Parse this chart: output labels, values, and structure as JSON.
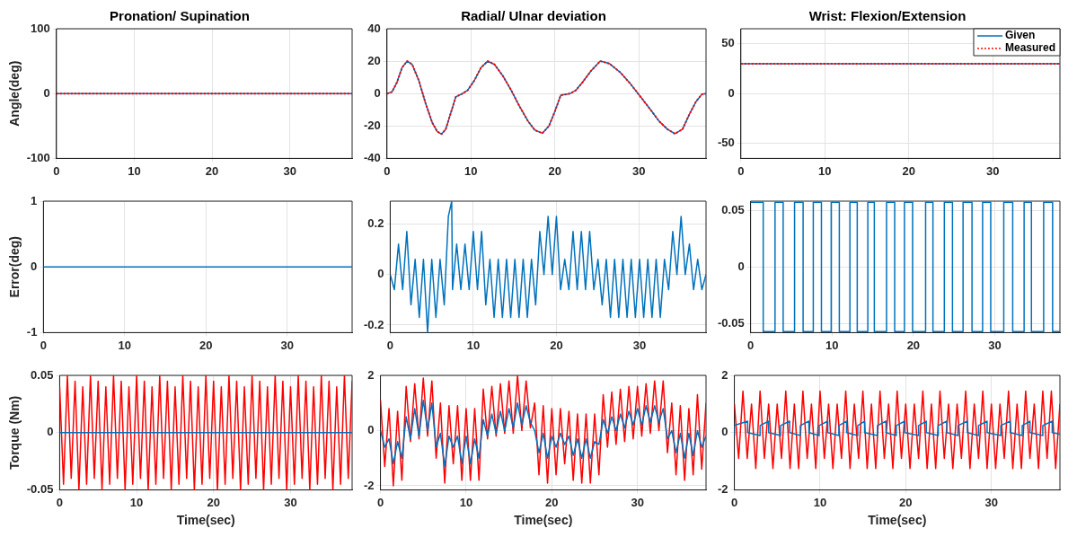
{
  "chart_data": [
    {
      "type": "line",
      "title": "Pronation/ Supination",
      "ylabel": "Angle(deg)",
      "xlim": [
        0,
        38
      ],
      "xticks": [
        0,
        10,
        20,
        30
      ],
      "ylim": [
        -100,
        100
      ],
      "yticks": [
        -100,
        0,
        100
      ],
      "grid": true,
      "series": [
        {
          "color": "#0072bd",
          "x": [
            0,
            38
          ],
          "values": [
            0,
            0
          ]
        },
        {
          "color": "#ff0000",
          "line_style": "dotted",
          "x": [
            0,
            38
          ],
          "values": [
            0,
            0
          ]
        }
      ]
    },
    {
      "type": "line",
      "title": "Radial/ Ulnar deviation",
      "xlim": [
        0,
        38
      ],
      "xticks": [
        0,
        10,
        20,
        30
      ],
      "ylim": [
        -40,
        40
      ],
      "yticks": [
        -40,
        -20,
        0,
        20,
        40
      ],
      "grid": true,
      "series": [
        {
          "color": "#0072bd",
          "x": [
            0,
            0.6,
            1.2,
            1.8,
            2.4,
            3.0,
            3.8,
            4.6,
            5.4,
            6.0,
            6.5,
            7.0,
            7.6,
            8.2,
            9.0,
            9.6,
            10.4,
            11.2,
            12.0,
            12.8,
            13.8,
            14.8,
            15.8,
            16.8,
            17.6,
            18.5,
            19.3,
            20.0,
            20.7,
            21.8,
            22.5,
            23.3,
            24.3,
            25.4,
            26.5,
            27.8,
            29.0,
            30.2,
            31.4,
            32.4,
            33.4,
            34.3,
            35.2,
            36.0,
            36.8,
            37.5,
            38
          ],
          "values": [
            0,
            1,
            7,
            16,
            20,
            18,
            8,
            -6,
            -18,
            -23.5,
            -25,
            -22,
            -12,
            -2,
            0,
            2,
            8,
            16,
            20,
            18,
            11,
            2,
            -8,
            -17,
            -22.5,
            -24.5,
            -20,
            -11,
            -1,
            0,
            2,
            7,
            14,
            20,
            18.5,
            13,
            6,
            -2,
            -10,
            -17,
            -22,
            -24.8,
            -22,
            -13,
            -5,
            -0.5,
            0
          ]
        },
        {
          "color": "#ff0000",
          "line_style": "dotted",
          "x": [
            0,
            0.6,
            1.2,
            1.8,
            2.4,
            3.0,
            3.8,
            4.6,
            5.4,
            6.0,
            6.5,
            7.0,
            7.6,
            8.2,
            9.0,
            9.6,
            10.4,
            11.2,
            12.0,
            12.8,
            13.8,
            14.8,
            15.8,
            16.8,
            17.6,
            18.5,
            19.3,
            20.0,
            20.7,
            21.8,
            22.5,
            23.3,
            24.3,
            25.4,
            26.5,
            27.8,
            29.0,
            30.2,
            31.4,
            32.4,
            33.4,
            34.3,
            35.2,
            36.0,
            36.8,
            37.5,
            38
          ],
          "values": [
            0,
            1,
            7,
            16,
            20,
            18,
            8,
            -6,
            -18,
            -23.5,
            -25,
            -22,
            -12,
            -2,
            0,
            2,
            8,
            16,
            20,
            18,
            11,
            2,
            -8,
            -17,
            -22.5,
            -24.5,
            -20,
            -11,
            -1,
            0,
            2,
            7,
            14,
            20,
            18.5,
            13,
            6,
            -2,
            -10,
            -17,
            -22,
            -24.8,
            -22,
            -13,
            -5,
            -0.5,
            0
          ]
        }
      ]
    },
    {
      "type": "line",
      "title": "Wrist: Flexion/Extension",
      "xlim": [
        0,
        38
      ],
      "xticks": [
        0,
        10,
        20,
        30
      ],
      "ylim": [
        -65,
        65
      ],
      "yticks": [
        -50,
        0,
        50
      ],
      "grid": true,
      "legend": "top right",
      "series": [
        {
          "name": "Given",
          "color": "#0072bd",
          "x": [
            0,
            38
          ],
          "values": [
            30,
            30
          ]
        },
        {
          "name": "Measured",
          "color": "#ff0000",
          "line_style": "dotted",
          "x": [
            0,
            38
          ],
          "values": [
            30,
            30
          ]
        }
      ]
    },
    {
      "type": "line",
      "ylabel": "Error(deg)",
      "xlim": [
        0,
        38
      ],
      "xticks": [
        0,
        10,
        20,
        30
      ],
      "ylim": [
        -1,
        1
      ],
      "yticks": [
        -1,
        0,
        1
      ],
      "grid": true,
      "series": [
        {
          "color": "#0072bd",
          "x": [
            0,
            38
          ],
          "values": [
            0,
            0
          ]
        }
      ]
    },
    {
      "type": "line",
      "xlim": [
        0,
        38
      ],
      "xticks": [
        0,
        10,
        20,
        30
      ],
      "ylim": [
        -0.23,
        0.29
      ],
      "yticks": [
        -0.2,
        0,
        0.2
      ],
      "grid": true,
      "series": [
        {
          "color": "#0072bd",
          "x": [
            0,
            0.5,
            1,
            1.5,
            2,
            2.5,
            3,
            3.5,
            4,
            4.5,
            5,
            5.5,
            6,
            6.5,
            7,
            7.4,
            7.5,
            8,
            8.5,
            9,
            9.5,
            10,
            10.5,
            11,
            11.5,
            12,
            12.5,
            13,
            13.5,
            14,
            14.5,
            15,
            15.5,
            16,
            16.5,
            17,
            17.5,
            18,
            18.5,
            19,
            19.5,
            20,
            20.5,
            21,
            21.5,
            22,
            22.5,
            23,
            23.5,
            24,
            24.5,
            25,
            25.5,
            26,
            26.5,
            27,
            27.5,
            28,
            28.5,
            29,
            29.5,
            30,
            30.5,
            31,
            31.5,
            32,
            32.5,
            33,
            33.5,
            34,
            34.5,
            35,
            35.5,
            36,
            36.5,
            37,
            37.5,
            38
          ],
          "values": [
            0,
            -0.06,
            0.12,
            -0.06,
            0.17,
            -0.12,
            0.06,
            -0.17,
            0.06,
            -0.23,
            0.06,
            -0.17,
            0.06,
            -0.12,
            0.23,
            0.29,
            -0.06,
            0.12,
            -0.06,
            0.12,
            -0.06,
            0.17,
            -0.06,
            0.17,
            -0.12,
            0.06,
            -0.17,
            0.06,
            -0.17,
            0.06,
            -0.17,
            0.06,
            -0.17,
            0.06,
            -0.17,
            0.06,
            -0.12,
            0.17,
            0,
            0.23,
            0,
            0.23,
            -0.06,
            0.06,
            -0.06,
            0.17,
            -0.06,
            0.17,
            -0.06,
            0.17,
            -0.06,
            0.06,
            -0.12,
            0.06,
            -0.17,
            0.06,
            -0.17,
            0.06,
            -0.17,
            0.06,
            -0.17,
            0.06,
            -0.17,
            0.06,
            -0.17,
            0.06,
            -0.17,
            0.06,
            -0.06,
            0.17,
            0,
            0.23,
            0,
            0.12,
            -0.06,
            0.06,
            -0.06,
            0
          ]
        }
      ]
    },
    {
      "type": "line",
      "xlim": [
        0,
        38
      ],
      "xticks": [
        0,
        10,
        20,
        30
      ],
      "ylim": [
        -0.058,
        0.058
      ],
      "yticks": [
        -0.05,
        0,
        0.05
      ],
      "grid": true,
      "series": [
        {
          "color": "#0072bd",
          "x": [
            0,
            1.55,
            1.55,
            3.0,
            3.0,
            4.0,
            4.0,
            5.4,
            5.4,
            6.45,
            6.45,
            7.7,
            7.7,
            8.7,
            8.7,
            9.9,
            9.9,
            10.9,
            10.9,
            12.2,
            12.2,
            13.1,
            13.1,
            14.4,
            14.4,
            15.2,
            15.2,
            16.7,
            16.7,
            17.7,
            17.7,
            18.9,
            18.9,
            19.9,
            19.9,
            21.5,
            21.5,
            22.4,
            22.4,
            23.8,
            23.8,
            24.8,
            24.8,
            26.1,
            26.1,
            27.2,
            27.2,
            28.5,
            28.5,
            29.5,
            29.5,
            31.1,
            31.1,
            32.2,
            32.2,
            33.6,
            33.6,
            34.5,
            34.5,
            36.0,
            36.0,
            37.1,
            37.1,
            38
          ],
          "values": [
            0.057,
            0.057,
            -0.057,
            -0.057,
            0.057,
            0.057,
            -0.057,
            -0.057,
            0.057,
            0.057,
            -0.057,
            -0.057,
            0.057,
            0.057,
            -0.057,
            -0.057,
            0.057,
            0.057,
            -0.057,
            -0.057,
            0.057,
            0.057,
            -0.057,
            -0.057,
            0.057,
            0.057,
            -0.057,
            -0.057,
            0.057,
            0.057,
            -0.057,
            -0.057,
            0.057,
            0.057,
            -0.057,
            -0.057,
            0.057,
            0.057,
            -0.057,
            -0.057,
            0.057,
            0.057,
            -0.057,
            -0.057,
            0.057,
            0.057,
            -0.057,
            -0.057,
            0.057,
            0.057,
            -0.057,
            -0.057,
            0.057,
            0.057,
            -0.057,
            -0.057,
            0.057,
            0.057,
            -0.057,
            -0.057,
            0.057,
            0.057,
            -0.057,
            -0.057
          ]
        }
      ]
    },
    {
      "type": "line",
      "xlabel": "Time(sec)",
      "ylabel": "Torque (Nm)",
      "xlim": [
        0,
        38
      ],
      "xticks": [
        0,
        10,
        20,
        30
      ],
      "ylim": [
        -0.05,
        0.05
      ],
      "yticks": [
        -0.05,
        0,
        0.05
      ],
      "grid": true,
      "x": [
        0,
        0.5,
        1,
        1.5,
        2,
        2.5,
        3,
        3.5,
        4,
        4.5,
        5,
        5.5,
        6,
        6.5,
        7,
        7.5,
        8,
        8.5,
        9,
        9.5,
        10,
        10.5,
        11,
        11.5,
        12,
        12.5,
        13,
        13.5,
        14,
        14.5,
        15,
        15.5,
        16,
        16.5,
        17,
        17.5,
        18,
        18.5,
        19,
        19.5,
        20,
        20.5,
        21,
        21.5,
        22,
        22.5,
        23,
        23.5,
        24,
        24.5,
        25,
        25.5,
        26,
        26.5,
        27,
        27.5,
        28,
        28.5,
        29,
        29.5,
        30,
        30.5,
        31,
        31.5,
        32,
        32.5,
        33,
        33.5,
        34,
        34.5,
        35,
        35.5,
        36,
        36.5,
        37,
        37.5,
        38
      ],
      "series": [
        {
          "color": "#ff0000",
          "values": [
            0.04,
            -0.045,
            0.05,
            -0.04,
            0.045,
            -0.05,
            0.04,
            -0.045,
            0.05,
            -0.04,
            0.045,
            -0.05,
            0.04,
            -0.045,
            0.05,
            -0.04,
            0.045,
            -0.05,
            0.04,
            -0.045,
            0.05,
            -0.04,
            0.045,
            -0.05,
            0.04,
            -0.045,
            0.05,
            -0.04,
            0.045,
            -0.05,
            0.04,
            -0.045,
            0.05,
            -0.04,
            0.045,
            -0.05,
            0.04,
            -0.045,
            0.05,
            -0.04,
            0.045,
            -0.05,
            0.04,
            -0.045,
            0.05,
            -0.04,
            0.045,
            -0.05,
            0.04,
            -0.045,
            0.05,
            -0.04,
            0.045,
            -0.05,
            0.04,
            -0.045,
            0.05,
            -0.04,
            0.045,
            -0.05,
            0.04,
            -0.045,
            0.05,
            -0.04,
            0.045,
            -0.05,
            0.04,
            -0.045,
            0.05,
            -0.04,
            0.045,
            -0.05,
            0.04,
            -0.045,
            0.05,
            -0.04,
            0.045
          ]
        },
        {
          "color": "#0072bd",
          "x": [
            0,
            38
          ],
          "values": [
            0,
            0
          ]
        }
      ]
    },
    {
      "type": "line",
      "xlabel": "Time(sec)",
      "xlim": [
        0,
        38
      ],
      "xticks": [
        0,
        10,
        20,
        30
      ],
      "ylim": [
        -2.15,
        2
      ],
      "yticks": [
        -2,
        0,
        2
      ],
      "grid": true,
      "x": [
        0,
        0.5,
        1,
        1.5,
        2,
        2.5,
        3,
        3.5,
        4,
        4.5,
        5,
        5.5,
        6,
        6.5,
        7,
        7.5,
        8,
        8.5,
        9,
        9.5,
        10,
        10.5,
        11,
        11.5,
        12,
        12.5,
        13,
        13.5,
        14,
        14.5,
        15,
        15.5,
        16,
        16.5,
        17,
        17.5,
        18,
        18.5,
        19,
        19.5,
        20,
        20.5,
        21,
        21.5,
        22,
        22.5,
        23,
        23.5,
        24,
        24.5,
        25,
        25.5,
        26,
        26.5,
        27,
        27.5,
        28,
        28.5,
        29,
        29.5,
        30,
        30.5,
        31,
        31.5,
        32,
        32.5,
        33,
        33.5,
        34,
        34.5,
        35,
        35.5,
        36,
        36.5,
        37,
        37.5,
        38
      ],
      "series": [
        {
          "color": "#ff0000",
          "values": [
            1.1,
            -1.3,
            0.8,
            -2.0,
            0.7,
            -1.8,
            1.6,
            -0.4,
            1.7,
            -0.3,
            1.9,
            -0.2,
            1.8,
            -1.0,
            1.0,
            -1.9,
            0.9,
            -1.2,
            0.9,
            -1.8,
            0.8,
            -1.8,
            0.8,
            -1.8,
            1.5,
            -0.3,
            1.6,
            -0.2,
            1.7,
            -0.1,
            1.8,
            -0.1,
            2.0,
            0,
            1.8,
            0.1,
            1.0,
            -1.6,
            0.9,
            -1.9,
            0.8,
            -1.6,
            0.8,
            -1.2,
            0.7,
            -1.8,
            0.6,
            -1.9,
            0.6,
            -1.9,
            0.6,
            -1.6,
            1.3,
            -0.6,
            1.4,
            -0.5,
            1.5,
            -0.4,
            1.6,
            -0.3,
            1.6,
            -0.2,
            1.7,
            -0.1,
            1.8,
            0,
            1.8,
            -0.8,
            1.0,
            -1.6,
            0.9,
            -1.8,
            0.8,
            -1.6,
            1.3,
            -1.4,
            1.0
          ]
        },
        {
          "color": "#0072bd",
          "values": [
            0,
            -0.6,
            -0.3,
            -1.2,
            -0.4,
            -1.0,
            0.5,
            -0.3,
            0.8,
            -0.2,
            1.1,
            0,
            1.0,
            -0.6,
            -0.1,
            -1.3,
            -0.2,
            -0.6,
            -0.2,
            -1.2,
            -0.2,
            -1.2,
            -0.3,
            -1.0,
            0.4,
            -0.2,
            0.6,
            -0.1,
            0.7,
            0,
            0.8,
            0.1,
            1.0,
            0.2,
            0.9,
            0.3,
            0,
            -0.8,
            -0.1,
            -1.0,
            -0.2,
            -0.6,
            -0.1,
            -0.5,
            -0.2,
            -0.9,
            -0.3,
            -1.0,
            -0.3,
            -1.0,
            -0.4,
            -0.5,
            0.4,
            -0.1,
            0.5,
            0,
            0.6,
            0.1,
            0.7,
            0.2,
            0.8,
            0.2,
            0.9,
            0.3,
            0.9,
            0.3,
            0.8,
            -0.3,
            0,
            -0.8,
            -0.1,
            -1.0,
            -0.1,
            -0.9,
            0,
            -0.6,
            -0.2
          ]
        }
      ]
    },
    {
      "type": "line",
      "xlabel": "Time(sec)",
      "xlim": [
        0,
        38
      ],
      "xticks": [
        0,
        10,
        20,
        30
      ],
      "ylim": [
        -2,
        2
      ],
      "yticks": [
        -2,
        0,
        2
      ],
      "grid": true,
      "x": [
        0,
        0.5,
        1,
        1.5,
        2,
        2.5,
        3,
        3.5,
        4,
        4.5,
        5,
        5.5,
        6,
        6.5,
        7,
        7.5,
        8,
        8.5,
        9,
        9.5,
        10,
        10.5,
        11,
        11.5,
        12,
        12.5,
        13,
        13.5,
        14,
        14.5,
        15,
        15.5,
        16,
        16.5,
        17,
        17.5,
        18,
        18.5,
        19,
        19.5,
        20,
        20.5,
        21,
        21.5,
        22,
        22.5,
        23,
        23.5,
        24,
        24.5,
        25,
        25.5,
        26,
        26.5,
        27,
        27.5,
        28,
        28.5,
        29,
        29.5,
        30,
        30.5,
        31,
        31.5,
        32,
        32.5,
        33,
        33.5,
        34,
        34.5,
        35,
        35.5,
        36,
        36.5,
        37,
        37.5,
        38
      ],
      "series": [
        {
          "color": "#ff0000",
          "values": [
            1.0,
            -0.9,
            1.45,
            -0.9,
            1.0,
            -1.25,
            1.45,
            -0.9,
            1.0,
            -1.25,
            1.0,
            -0.9,
            1.45,
            -1.25,
            1.0,
            -1.25,
            1.45,
            -0.9,
            1.0,
            -1.25,
            1.45,
            -0.9,
            1.0,
            -1.25,
            1.0,
            -0.9,
            1.45,
            -1.25,
            1.0,
            -0.9,
            1.45,
            -1.25,
            1.0,
            -1.25,
            1.45,
            -0.9,
            1.0,
            -1.25,
            1.45,
            -0.9,
            1.0,
            -1.25,
            1.0,
            -0.9,
            1.45,
            -1.25,
            1.0,
            -1.25,
            1.45,
            -0.9,
            1.0,
            -1.25,
            1.0,
            -0.9,
            1.45,
            -1.25,
            1.0,
            -0.9,
            1.45,
            -1.25,
            1.0,
            -1.25,
            1.0,
            -0.9,
            1.45,
            -1.25,
            1.0,
            -1.25,
            1.45,
            -0.9,
            1.0,
            -1.25,
            1.45,
            -0.9,
            1.45,
            -1.25,
            1.0
          ]
        },
        {
          "color": "#0072bd",
          "x": [
            0,
            0,
            1.55,
            1.55,
            3.0,
            3.0,
            4.0,
            4.0,
            5.4,
            5.4,
            6.45,
            6.45,
            7.7,
            7.7,
            8.7,
            8.7,
            9.9,
            9.9,
            10.9,
            10.9,
            12.2,
            12.2,
            13.1,
            13.1,
            14.4,
            14.4,
            15.2,
            15.2,
            16.7,
            16.7,
            17.7,
            17.7,
            18.9,
            18.9,
            19.9,
            19.9,
            21.5,
            21.5,
            22.4,
            22.4,
            23.8,
            23.8,
            24.8,
            24.8,
            26.1,
            26.1,
            27.2,
            27.2,
            28.5,
            28.5,
            29.5,
            29.5,
            31.1,
            31.1,
            32.2,
            32.2,
            33.6,
            33.6,
            34.5,
            34.5,
            36.0,
            36.0,
            37.1,
            37.1,
            38
          ],
          "values": [
            -0.1,
            0.25,
            0.4,
            0,
            -0.1,
            0.25,
            0.4,
            0,
            -0.1,
            0.25,
            0.4,
            0,
            -0.1,
            0.25,
            0.4,
            0,
            -0.1,
            0.25,
            0.4,
            0,
            -0.1,
            0.25,
            0.4,
            0,
            -0.1,
            0.25,
            0.4,
            0,
            -0.1,
            0.25,
            0.4,
            0,
            -0.1,
            0.25,
            0.4,
            0,
            -0.1,
            0.25,
            0.4,
            0,
            -0.1,
            0.25,
            0.4,
            0,
            -0.1,
            0.25,
            0.4,
            0,
            -0.1,
            0.25,
            0.4,
            0,
            -0.1,
            0.25,
            0.4,
            0,
            -0.1,
            0.25,
            0.4,
            0,
            -0.1,
            0.25,
            0.4,
            0,
            -0.05
          ]
        }
      ]
    }
  ]
}
